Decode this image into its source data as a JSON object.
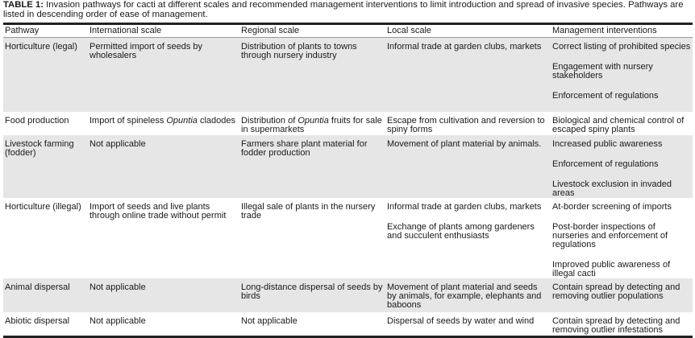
{
  "caption": {
    "label": "TABLE 1:",
    "text": " Invasion pathways for cacti at different scales and recommended management interventions to limit introduction and spread of invasive species. Pathways are listed in descending order of ease of management."
  },
  "headers": [
    "Pathway",
    "International scale",
    "Regional scale",
    "Local scale",
    "Management interventions"
  ],
  "rows": [
    {
      "pathway": "Horticulture (legal)",
      "international": "Permitted import of seeds by wholesalers",
      "regional": "Distribution of plants to towns through nursery industry",
      "local": [
        "Informal trade at garden clubs, markets"
      ],
      "management": [
        "Correct listing of prohibited species",
        "Engagement with nursery stakeholders",
        "Enforcement of regulations"
      ]
    },
    {
      "pathway": "Food production",
      "international_pre": "Import of spineless ",
      "international_italic": "Opuntia",
      "international_post": " cladodes",
      "regional_pre": "Distribution of ",
      "regional_italic": "Opuntia",
      "regional_post": " fruits for sale in supermarkets",
      "local": [
        "Escape from cultivation and reversion to spiny forms"
      ],
      "management": [
        "Biological and chemical control of escaped spiny plants"
      ]
    },
    {
      "pathway": "Livestock farming (fodder)",
      "international": "Not applicable",
      "regional": "Farmers share plant material for fodder production",
      "local": [
        "Movement of plant material by animals."
      ],
      "management": [
        "Increased public awareness",
        "Enforcement of regulations",
        "Livestock exclusion in invaded areas"
      ]
    },
    {
      "pathway": "Horticulture (illegal)",
      "international": "Import of seeds and live plants through online trade without permit",
      "regional": "Illegal sale of plants in the nursery trade",
      "local": [
        "Informal trade at garden clubs, markets",
        "Exchange of plants among gardeners and succulent enthusiasts"
      ],
      "management": [
        "At-border screening of imports",
        "Post-border inspections of nurseries and enforcement of regulations",
        "Improved public awareness of illegal cacti"
      ]
    },
    {
      "pathway": "Animal dispersal",
      "international": "Not applicable",
      "regional": "Long-distance dispersal of seeds by birds",
      "local": [
        "Movement of plant material and seeds by animals, for example, elephants and baboons"
      ],
      "management": [
        "Contain spread by detecting and removing outlier populations"
      ]
    },
    {
      "pathway": "Abiotic dispersal",
      "international": "Not applicable",
      "regional": "Not applicable",
      "local": [
        "Dispersal of seeds by water and wind"
      ],
      "management": [
        "Contain spread by detecting and removing outlier infestations"
      ]
    }
  ],
  "colors": {
    "shaded_row": "#e6e6e6",
    "rule": "#222222"
  }
}
